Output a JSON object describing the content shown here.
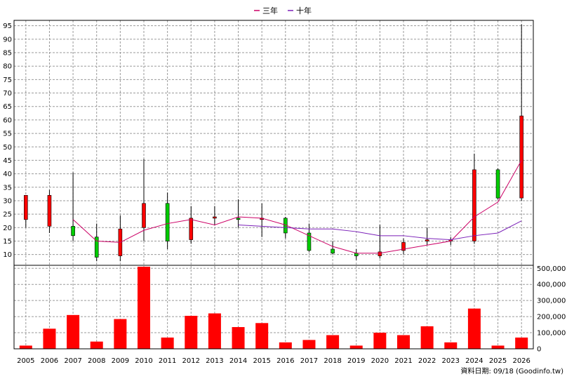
{
  "chart_data": {
    "type": "candlestick",
    "legend": {
      "placement": "top-center",
      "entries": [
        {
          "name": "三年",
          "color": "#cc0066"
        },
        {
          "name": "十年",
          "color": "#7a1fb8"
        }
      ]
    },
    "categories": [
      "2005",
      "2006",
      "2007",
      "2008",
      "2009",
      "2010",
      "2011",
      "2012",
      "2013",
      "2014",
      "2015",
      "2016",
      "2017",
      "2018",
      "2019",
      "2020",
      "2021",
      "2022",
      "2023",
      "2024",
      "2025",
      "2026"
    ],
    "price_axis": {
      "range": [
        6,
        97
      ],
      "ticks": [
        10,
        15,
        20,
        25,
        30,
        35,
        40,
        45,
        50,
        55,
        60,
        65,
        70,
        75,
        80,
        85,
        90,
        95
      ],
      "grid": true
    },
    "volume_axis": {
      "range": [
        0,
        510000
      ],
      "ticks": [
        0,
        100000,
        200000,
        300000,
        400000,
        500000
      ],
      "tick_labels": [
        "0",
        "100,000",
        "200,000",
        "300,000",
        "400,000",
        "500,000"
      ]
    },
    "candles": [
      {
        "year": "2005",
        "open": 23,
        "high": 32,
        "low": 20,
        "close": 32
      },
      {
        "year": "2006",
        "open": 20.5,
        "high": 34,
        "low": 18,
        "close": 32
      },
      {
        "year": "2007",
        "open": 20.5,
        "high": 40.5,
        "low": 15,
        "close": 17
      },
      {
        "year": "2008",
        "open": 16.5,
        "high": 21.5,
        "low": 7.5,
        "close": 9
      },
      {
        "year": "2009",
        "open": 9.5,
        "high": 24.5,
        "low": 7.5,
        "close": 19.5
      },
      {
        "year": "2010",
        "open": 20,
        "high": 45.5,
        "low": 15,
        "close": 29
      },
      {
        "year": "2011",
        "open": 29,
        "high": 33,
        "low": 12,
        "close": 15
      },
      {
        "year": "2012",
        "open": 15.5,
        "high": 28,
        "low": 14,
        "close": 23.5
      },
      {
        "year": "2013",
        "open": 23.5,
        "high": 28,
        "low": 21,
        "close": 24
      },
      {
        "year": "2014",
        "open": 23.5,
        "high": 30.5,
        "low": 20,
        "close": 23
      },
      {
        "year": "2015",
        "open": 23,
        "high": 29,
        "low": 16.5,
        "close": 23.5
      },
      {
        "year": "2016",
        "open": 23.5,
        "high": 24,
        "low": 16,
        "close": 18
      },
      {
        "year": "2017",
        "open": 18,
        "high": 21.5,
        "low": 11,
        "close": 11.5
      },
      {
        "year": "2018",
        "open": 12,
        "high": 15,
        "low": 10,
        "close": 10.5
      },
      {
        "year": "2019",
        "open": 10.5,
        "high": 12,
        "low": 8,
        "close": 9.5
      },
      {
        "year": "2020",
        "open": 9.5,
        "high": 21,
        "low": 8.5,
        "close": 11
      },
      {
        "year": "2021",
        "open": 11.5,
        "high": 16,
        "low": 10,
        "close": 14.5
      },
      {
        "year": "2022",
        "open": 15,
        "high": 20,
        "low": 13.5,
        "close": 15.5
      },
      {
        "year": "2023",
        "open": 15,
        "high": 16.5,
        "low": 13.5,
        "close": 15.5
      },
      {
        "year": "2024",
        "open": 15,
        "high": 47.5,
        "low": 14,
        "close": 41.5
      },
      {
        "year": "2025",
        "open": 41.5,
        "high": 42,
        "low": 30.5,
        "close": 31
      },
      {
        "year": "2026",
        "open": 31,
        "high": 95.5,
        "low": 30,
        "close": 61.5
      }
    ],
    "ma3": {
      "name": "三年",
      "start_year": "2007",
      "values": [
        23,
        15,
        14.5,
        19,
        21.5,
        23,
        21,
        24,
        23.5,
        21,
        17,
        13,
        10.5,
        10.5,
        12,
        13.5,
        15,
        24,
        29.5,
        45
      ]
    },
    "ma10": {
      "name": "十年",
      "start_year": "2014",
      "values": [
        21,
        20.5,
        20,
        19.5,
        19.5,
        18.5,
        17,
        17,
        16,
        15.5,
        17,
        18,
        22.5
      ]
    },
    "volume": [
      20000,
      125000,
      210000,
      45000,
      185000,
      510000,
      70000,
      205000,
      220000,
      135000,
      160000,
      40000,
      55000,
      85000,
      20000,
      100000,
      85000,
      140000,
      40000,
      250000,
      20000,
      70000
    ],
    "footer_note": "資料日期: 09/18 (Goodinfo.tw)"
  }
}
